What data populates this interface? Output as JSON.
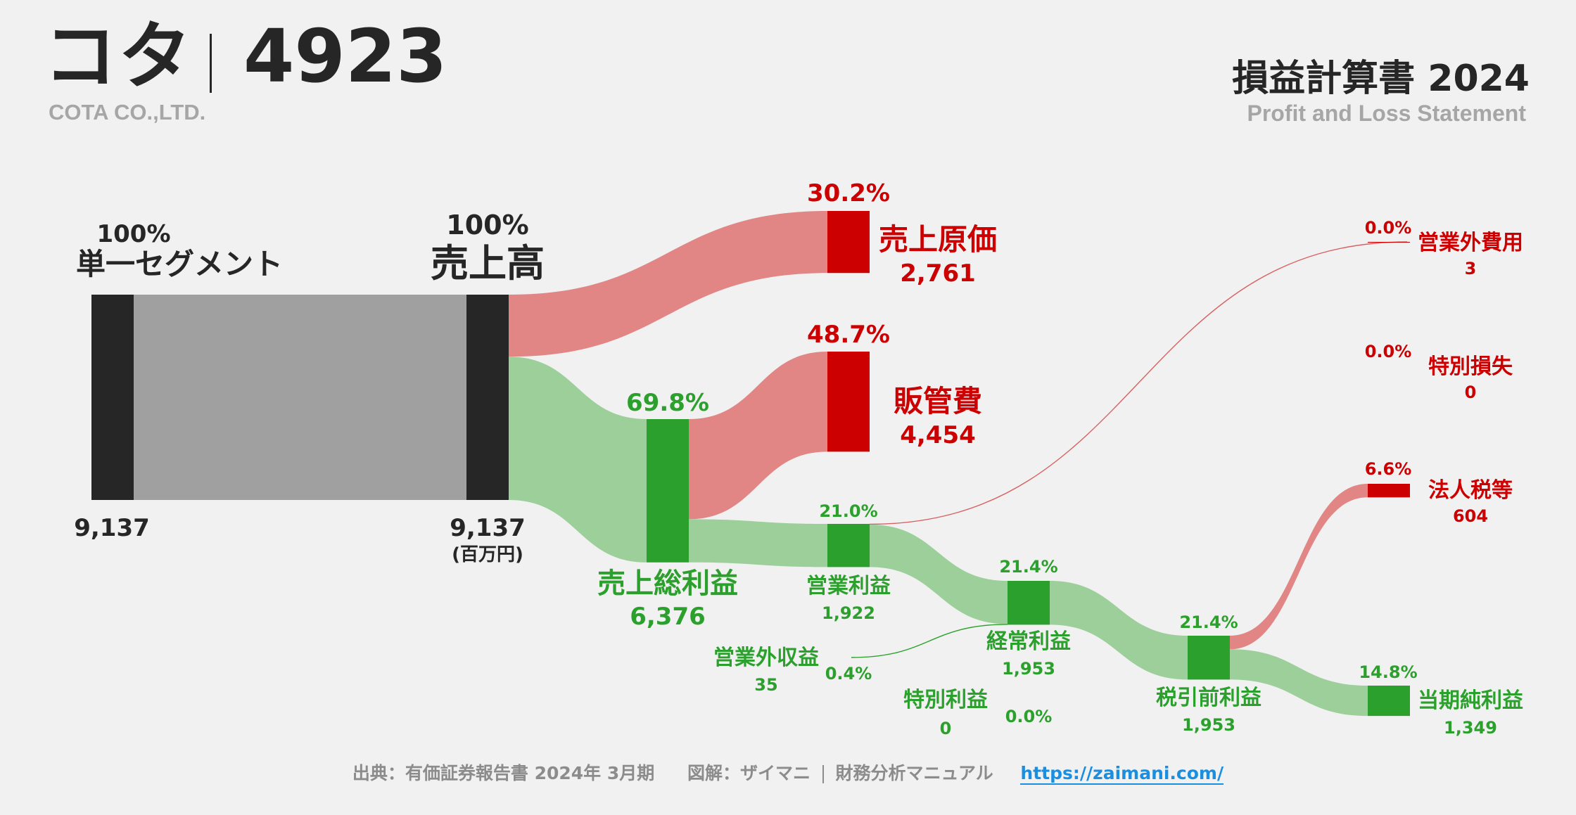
{
  "header": {
    "company_name": "コタ",
    "ticker": "4923",
    "company_en": "COTA CO.,LTD.",
    "statement_title": "損益計算書 2024",
    "statement_en": "Profit and Loss Statement"
  },
  "footer": {
    "source": "出典：有価証券報告書 2024年 3月期",
    "credit": "図解：ザイマニ",
    "site_name": "財務分析マニュアル",
    "url": "https://zaimani.com/"
  },
  "colors": {
    "black": "#262626",
    "gray_flow": "#a0a0a0",
    "red": "#cc0000",
    "red_flow": "#e18585",
    "green": "#2ca02c",
    "green_flow": "#9dcf9b",
    "label_black": "#262626"
  },
  "chart_data": {
    "type": "sankey",
    "unit": "(百万円)",
    "nodes": [
      {
        "id": "segment",
        "name": "単一セグメント",
        "value": 9137,
        "value_label": "9,137",
        "pct": "100%"
      },
      {
        "id": "revenue",
        "name": "売上高",
        "value": 9137,
        "value_label": "9,137",
        "pct": "100%"
      },
      {
        "id": "cogs",
        "name": "売上原価",
        "value": 2761,
        "value_label": "2,761",
        "pct": "30.2%"
      },
      {
        "id": "gross",
        "name": "売上総利益",
        "value": 6376,
        "value_label": "6,376",
        "pct": "69.8%"
      },
      {
        "id": "sga",
        "name": "販管費",
        "value": 4454,
        "value_label": "4,454",
        "pct": "48.7%"
      },
      {
        "id": "op",
        "name": "営業利益",
        "value": 1922,
        "value_label": "1,922",
        "pct": "21.0%"
      },
      {
        "id": "nonop_inc",
        "name": "営業外収益",
        "value": 35,
        "value_label": "35",
        "pct": "0.4%"
      },
      {
        "id": "nonop_exp",
        "name": "営業外費用",
        "value": 3,
        "value_label": "3",
        "pct": "0.0%"
      },
      {
        "id": "ordinary",
        "name": "経常利益",
        "value": 1953,
        "value_label": "1,953",
        "pct": "21.4%"
      },
      {
        "id": "ext_gain",
        "name": "特別利益",
        "value": 0,
        "value_label": "0",
        "pct": "0.0%"
      },
      {
        "id": "ext_loss",
        "name": "特別損失",
        "value": 0,
        "value_label": "0",
        "pct": "0.0%"
      },
      {
        "id": "pretax",
        "name": "税引前利益",
        "value": 1953,
        "value_label": "1,953",
        "pct": "21.4%"
      },
      {
        "id": "tax",
        "name": "法人税等",
        "value": 604,
        "value_label": "604",
        "pct": "6.6%"
      },
      {
        "id": "net",
        "name": "当期純利益",
        "value": 1349,
        "value_label": "1,349",
        "pct": "14.8%"
      }
    ],
    "links": [
      {
        "source": "segment",
        "target": "revenue",
        "value": 9137
      },
      {
        "source": "revenue",
        "target": "cogs",
        "value": 2761
      },
      {
        "source": "revenue",
        "target": "gross",
        "value": 6376
      },
      {
        "source": "gross",
        "target": "sga",
        "value": 4454
      },
      {
        "source": "gross",
        "target": "op",
        "value": 1922
      },
      {
        "source": "op",
        "target": "nonop_exp",
        "value": 3
      },
      {
        "source": "op",
        "target": "ordinary",
        "value": 1919
      },
      {
        "source": "nonop_inc",
        "target": "ordinary",
        "value": 35
      },
      {
        "source": "ordinary",
        "target": "pretax",
        "value": 1953
      },
      {
        "source": "pretax",
        "target": "tax",
        "value": 604
      },
      {
        "source": "pretax",
        "target": "net",
        "value": 1349
      }
    ]
  }
}
